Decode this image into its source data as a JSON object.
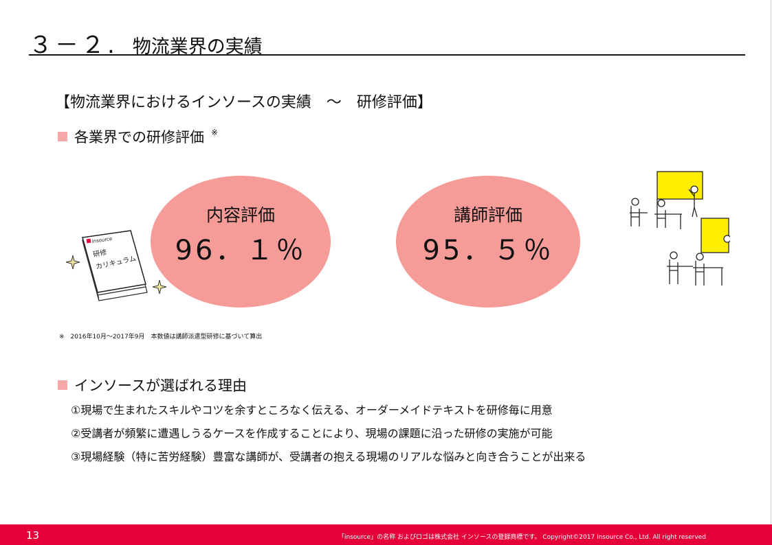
{
  "header": {
    "number": "３－２.",
    "title": "物流業界の実績"
  },
  "subtitle": "【物流業界におけるインソースの実績　～　研修評価】",
  "evaluation_section": {
    "heading": "各業界での研修評価",
    "asterisk": "※",
    "content_eval": {
      "label": "内容評価",
      "value": "96．１％"
    },
    "instructor_eval": {
      "label": "講師評価",
      "value": "95．５％"
    },
    "footnote": "※　2016年10月～2017年9月　本数値は講師派遣型研修に基づいて算出"
  },
  "book_illustration": {
    "logo": "insource",
    "text_line1": "研修",
    "text_line2": "カリキュラム"
  },
  "reasons_section": {
    "heading": "インソースが選ばれる理由",
    "items": [
      "①現場で生まれたスキルやコツを余すところなく伝える、オーダーメイドテキストを研修毎に用意",
      "②受講者が頻繁に遭遇しうるケースを作成することにより、現場の課題に沿った研修の実施が可能",
      "③現場経験（特に苦労経験）豊富な講師が、受講者の抱える現場のリアルな悩みと向き合うことが出来る"
    ]
  },
  "footer": {
    "page_number": "13",
    "copyright": "「insource」の名称 およびロゴは株式会社 インソースの登録商標です。 Copyright©2017 Insource Co., Ltd. All right reserved"
  },
  "colors": {
    "accent_pink": "#f59c98",
    "square_pink": "#f4a9a8",
    "footer_red": "#e5003a",
    "screen_yellow": "#ffee00"
  }
}
